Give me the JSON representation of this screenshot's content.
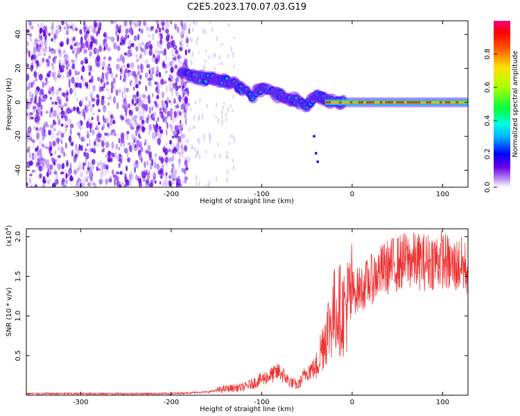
{
  "title": "C2E5.2023.170.07.03.G19",
  "chart_data": [
    {
      "type": "heatmap",
      "xlabel": "Height of straight line (km)",
      "ylabel": "Frequency (Hz)",
      "xlim": [
        -360,
        128
      ],
      "ylim": [
        -50,
        48
      ],
      "x_ticks": [
        -300,
        -200,
        -100,
        0,
        100
      ],
      "x_tick_labels": [
        "-300",
        "-200",
        "-100",
        "0",
        "100"
      ],
      "y_ticks": [
        40,
        20,
        0,
        -20,
        -40
      ],
      "y_tick_labels": [
        "40",
        "20",
        "0",
        "-20",
        "-40"
      ],
      "colorbar": {
        "label": "Normalized spectral amplitude",
        "range": [
          0,
          1
        ],
        "ticks": [
          0.0,
          0.2,
          0.4,
          0.6,
          0.8
        ],
        "tick_labels": [
          "0.0",
          "0.2",
          "0.4",
          "0.6",
          "0.8"
        ],
        "colormap": "rainbow"
      },
      "signal_trace": {
        "x": [
          -190,
          -175,
          -160,
          -145,
          -130,
          -120,
          -110,
          -100,
          -90,
          -80,
          -70,
          -60,
          -50,
          -40,
          -30,
          -20,
          0,
          50,
          100,
          128
        ],
        "y": [
          17,
          15,
          14,
          13,
          11,
          7,
          4,
          8,
          7,
          4,
          2,
          1,
          -2,
          3,
          2,
          0,
          1,
          0,
          0,
          0
        ]
      },
      "noise_region_x": [
        -360,
        -190
      ]
    },
    {
      "type": "line",
      "xlabel": "Height of straight line (km)",
      "ylabel": "SNR (10 * v/v)",
      "y_multiplier_label": "(x10",
      "y_multiplier_exp": "4",
      "xlim": [
        -360,
        128
      ],
      "ylim": [
        0,
        2.1
      ],
      "x_ticks": [
        -300,
        -200,
        -100,
        0,
        100
      ],
      "x_tick_labels": [
        "-300",
        "-200",
        "-100",
        "0",
        "100"
      ],
      "y_ticks": [
        0.5,
        1.0,
        1.5,
        2.0
      ],
      "y_tick_labels": [
        "0.5",
        "1.0",
        "1.5",
        "2.0"
      ],
      "series": [
        {
          "color": "#ee3333",
          "x": [
            -360,
            -300,
            -250,
            -200,
            -160,
            -140,
            -120,
            -100,
            -90,
            -80,
            -70,
            -60,
            -50,
            -40,
            -30,
            -20,
            -15,
            -10,
            -5,
            0,
            10,
            20,
            30,
            40,
            60,
            80,
            100,
            110,
            120,
            128
          ],
          "y": [
            0.02,
            0.02,
            0.02,
            0.02,
            0.04,
            0.08,
            0.1,
            0.2,
            0.25,
            0.3,
            0.18,
            0.12,
            0.3,
            0.35,
            0.75,
            1.05,
            1.1,
            1.05,
            1.15,
            1.3,
            1.35,
            1.45,
            1.55,
            1.62,
            1.7,
            1.68,
            1.72,
            1.62,
            1.65,
            1.58
          ]
        }
      ]
    }
  ]
}
